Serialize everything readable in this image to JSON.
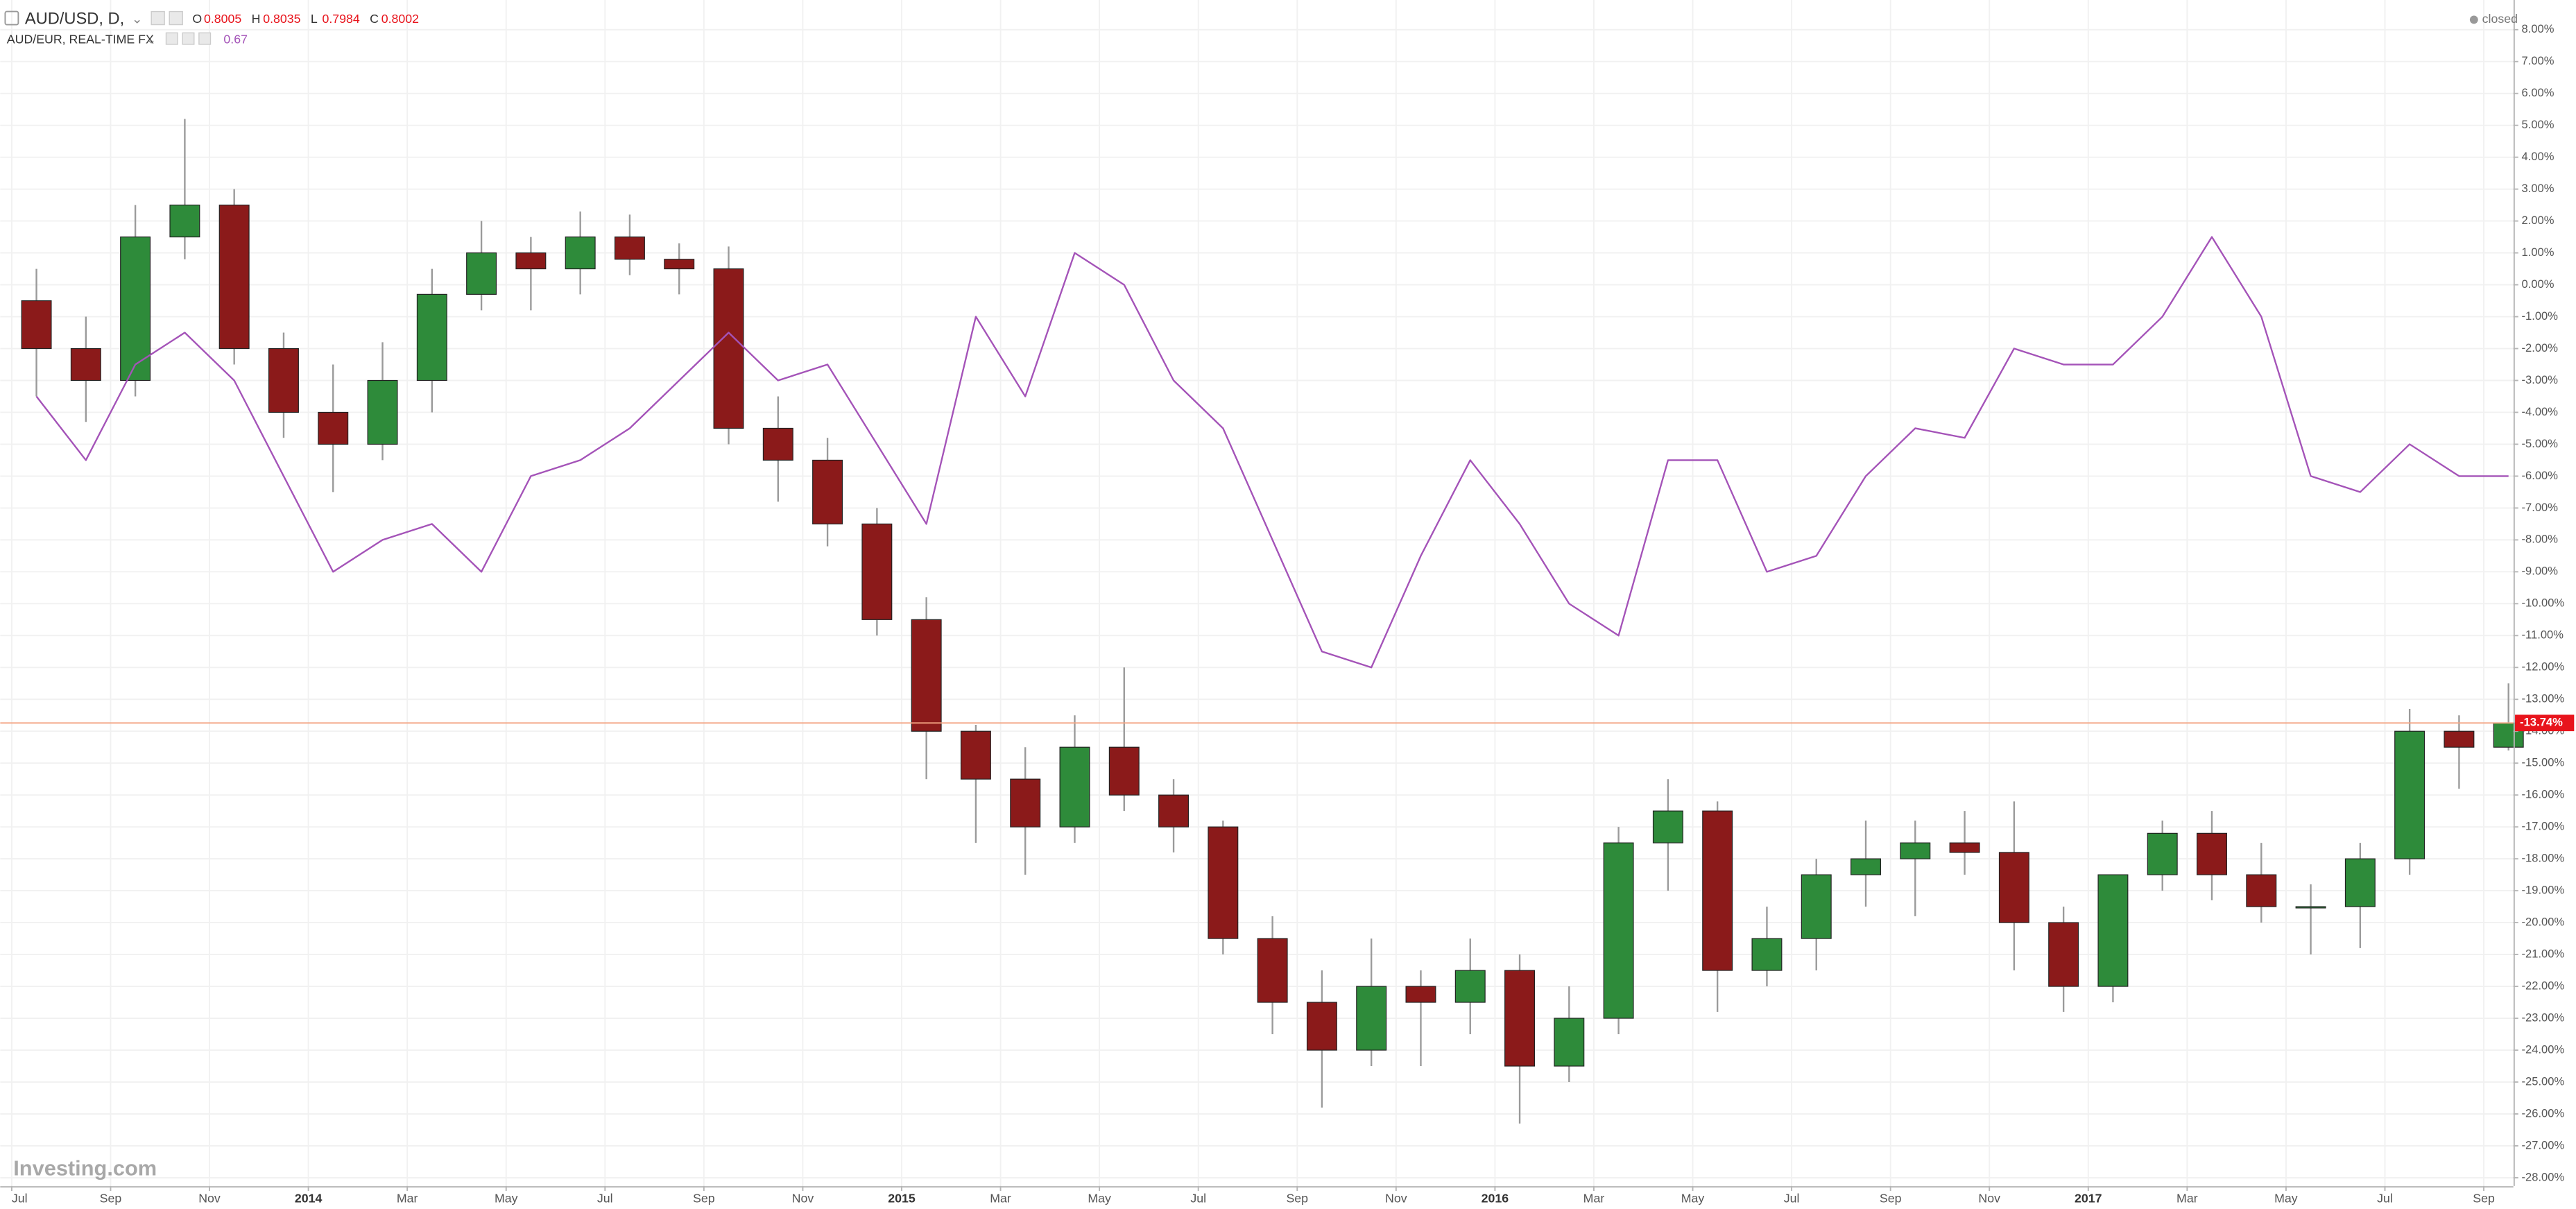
{
  "chart_data": {
    "type": "candlestick",
    "x": [
      "2013-07",
      "2013-08",
      "2013-09",
      "2013-10",
      "2013-11",
      "2013-12",
      "2014-01",
      "2014-02",
      "2014-03",
      "2014-04",
      "2014-05",
      "2014-06",
      "2014-07",
      "2014-08",
      "2014-09",
      "2014-10",
      "2014-11",
      "2014-12",
      "2015-01",
      "2015-02",
      "2015-03",
      "2015-04",
      "2015-05",
      "2015-06",
      "2015-07",
      "2015-08",
      "2015-09",
      "2015-10",
      "2015-11",
      "2015-12",
      "2016-01",
      "2016-02",
      "2016-03",
      "2016-04",
      "2016-05",
      "2016-06",
      "2016-07",
      "2016-08",
      "2016-09",
      "2016-10",
      "2016-11",
      "2016-12",
      "2017-01",
      "2017-02",
      "2017-03",
      "2017-04",
      "2017-05",
      "2017-06",
      "2017-07",
      "2017-08",
      "2017-09"
    ],
    "series": [
      {
        "name": "AUD/USD, D,",
        "type": "candlestick",
        "up_color": "#2e8b3a",
        "down_color": "#8b1a1a",
        "wick_color": "#9a9a9a",
        "open": [
          -0.5,
          -2.0,
          -3.0,
          1.5,
          2.5,
          -2.0,
          -4.0,
          -5.0,
          -3.0,
          -0.3,
          1.0,
          0.5,
          1.5,
          0.8,
          0.5,
          -4.5,
          -5.5,
          -7.5,
          -10.5,
          -14.0,
          -15.5,
          -17.0,
          -14.5,
          -16.0,
          -17.0,
          -20.5,
          -22.5,
          -24.0,
          -22.0,
          -22.5,
          -21.5,
          -24.5,
          -23.0,
          -17.5,
          -16.5,
          -21.5,
          -20.5,
          -18.5,
          -18.0,
          -17.5,
          -17.8,
          -20.0,
          -22.0,
          -18.5,
          -17.2,
          -18.5,
          -19.5,
          -19.5,
          -18.0,
          -14.0,
          -14.5
        ],
        "high": [
          0.5,
          -1.0,
          2.5,
          5.2,
          3.0,
          -1.5,
          -2.5,
          -1.8,
          0.5,
          2.0,
          1.5,
          2.3,
          2.2,
          1.3,
          1.2,
          -3.5,
          -4.8,
          -7.0,
          -9.8,
          -13.8,
          -14.5,
          -13.5,
          -12.0,
          -15.5,
          -16.8,
          -19.8,
          -21.5,
          -20.5,
          -21.5,
          -20.5,
          -21.0,
          -22.0,
          -17.0,
          -15.5,
          -16.2,
          -19.5,
          -18.0,
          -16.8,
          -16.8,
          -16.5,
          -16.2,
          -19.5,
          -18.5,
          -16.8,
          -16.5,
          -17.5,
          -18.8,
          -17.5,
          -13.3,
          -13.5,
          -12.5
        ],
        "low": [
          -3.5,
          -4.3,
          -3.5,
          0.8,
          -2.5,
          -4.8,
          -6.5,
          -5.5,
          -4.0,
          -0.8,
          -0.8,
          -0.3,
          0.3,
          -0.3,
          -5.0,
          -6.8,
          -8.2,
          -11.0,
          -15.5,
          -17.5,
          -18.5,
          -17.5,
          -16.5,
          -17.8,
          -21.0,
          -23.5,
          -25.8,
          -24.5,
          -24.5,
          -23.5,
          -26.3,
          -25.0,
          -23.5,
          -19.0,
          -22.8,
          -22.0,
          -21.5,
          -19.5,
          -19.8,
          -18.5,
          -21.5,
          -22.8,
          -22.5,
          -19.0,
          -19.3,
          -20.0,
          -21.0,
          -20.8,
          -18.5,
          -15.8,
          -14.6
        ],
        "close": [
          -2.0,
          -3.0,
          1.5,
          2.5,
          -2.0,
          -4.0,
          -5.0,
          -3.0,
          -0.3,
          1.0,
          0.5,
          1.5,
          0.8,
          0.5,
          -4.5,
          -5.5,
          -7.5,
          -10.5,
          -14.0,
          -15.5,
          -17.0,
          -14.5,
          -16.0,
          -17.0,
          -20.5,
          -22.5,
          -24.0,
          -22.0,
          -22.5,
          -21.5,
          -24.5,
          -23.0,
          -17.5,
          -16.5,
          -21.5,
          -20.5,
          -18.5,
          -18.0,
          -17.5,
          -17.8,
          -20.0,
          -22.0,
          -18.5,
          -17.2,
          -18.5,
          -19.5,
          -19.5,
          -18.0,
          -14.0,
          -14.5,
          -13.74
        ],
        "value_labels": [
          null,
          null,
          null,
          null,
          null,
          null,
          null,
          null,
          null,
          null,
          null,
          null,
          null,
          null,
          null,
          null,
          null,
          null,
          null,
          null,
          null,
          null,
          null,
          null,
          null,
          null,
          null,
          null,
          null,
          null,
          null,
          null,
          null,
          null,
          null,
          null,
          null,
          null,
          null,
          null,
          null,
          null,
          null,
          null,
          null,
          null,
          null,
          null,
          null,
          null,
          "-13.74%"
        ],
        "last_color": "#e8141c",
        "last_line_color": "#f3a583"
      },
      {
        "name": "AUD/EUR, REAL-TIME FX",
        "type": "line",
        "color": "#a453b8",
        "values": [
          -3.5,
          -5.5,
          -2.5,
          -1.5,
          -3.0,
          -6.0,
          -9.0,
          -8.0,
          -7.5,
          -9.0,
          -6.0,
          -5.5,
          -4.5,
          -3.0,
          -1.5,
          -3.0,
          -2.5,
          -5.0,
          -7.5,
          -1.0,
          -3.5,
          1.0,
          0.0,
          -3.0,
          -4.5,
          -8.0,
          -11.5,
          -12.0,
          -8.5,
          -5.5,
          -7.5,
          -10.0,
          -11.0,
          -5.5,
          -5.5,
          -9.0,
          -8.5,
          -6.0,
          -4.5,
          -4.8,
          -2.0,
          -2.5,
          -2.5,
          -1.0,
          1.5,
          -1.0,
          -6.0,
          -6.5,
          -5.0,
          -6.0,
          -6.0
        ]
      }
    ],
    "ohlc_labels": [
      "O",
      "H",
      "L",
      "C"
    ],
    "ohlc_values": [
      0.8005,
      0.8035,
      0.7984,
      0.8002
    ],
    "compare_value": 0.67,
    "status": "closed",
    "watermark": "Investing.com",
    "ylim": [
      -28.26,
      8.93
    ],
    "yticks": [
      {
        "value": 8,
        "label": "8.00%"
      },
      {
        "value": 7,
        "label": "7.00%"
      },
      {
        "value": 6,
        "label": "6.00%"
      },
      {
        "value": 5,
        "label": "5.00%"
      },
      {
        "value": 4,
        "label": "4.00%"
      },
      {
        "value": 3,
        "label": "3.00%"
      },
      {
        "value": 2,
        "label": "2.00%"
      },
      {
        "value": 1,
        "label": "1.00%"
      },
      {
        "value": 0,
        "label": "0.00%"
      },
      {
        "value": -1,
        "label": "-1.00%"
      },
      {
        "value": -2,
        "label": "-2.00%"
      },
      {
        "value": -3,
        "label": "-3.00%"
      },
      {
        "value": -4,
        "label": "-4.00%"
      },
      {
        "value": -5,
        "label": "-5.00%"
      },
      {
        "value": -6,
        "label": "-6.00%"
      },
      {
        "value": -7,
        "label": "-7.00%"
      },
      {
        "value": -8,
        "label": "-8.00%"
      },
      {
        "value": -9,
        "label": "-9.00%"
      },
      {
        "value": -10,
        "label": "-10.00%"
      },
      {
        "value": -11,
        "label": "-11.00%"
      },
      {
        "value": -12,
        "label": "-12.00%"
      },
      {
        "value": -13,
        "label": "-13.00%"
      },
      {
        "value": -14,
        "label": "-14.00%"
      },
      {
        "value": -15,
        "label": "-15.00%"
      },
      {
        "value": -16,
        "label": "-16.00%"
      },
      {
        "value": -17,
        "label": "-17.00%"
      },
      {
        "value": -18,
        "label": "-18.00%"
      },
      {
        "value": -19,
        "label": "-19.00%"
      },
      {
        "value": -20,
        "label": "-20.00%"
      },
      {
        "value": -21,
        "label": "-21.00%"
      },
      {
        "value": -22,
        "label": "-22.00%"
      },
      {
        "value": -23,
        "label": "-23.00%"
      },
      {
        "value": -24,
        "label": "-24.00%"
      },
      {
        "value": -25,
        "label": "-25.00%"
      },
      {
        "value": -26,
        "label": "-26.00%"
      },
      {
        "value": -27,
        "label": "-27.00%"
      },
      {
        "value": -28,
        "label": "-28.00%"
      }
    ],
    "xticks": [
      {
        "value": "2013-07",
        "label": "Jul"
      },
      {
        "value": "2013-09",
        "label": "Sep"
      },
      {
        "value": "2013-11",
        "label": "Nov"
      },
      {
        "value": "2014-01",
        "label": "2014"
      },
      {
        "value": "2014-03",
        "label": "Mar"
      },
      {
        "value": "2014-05",
        "label": "May"
      },
      {
        "value": "2014-07",
        "label": "Jul"
      },
      {
        "value": "2014-09",
        "label": "Sep"
      },
      {
        "value": "2014-11",
        "label": "Nov"
      },
      {
        "value": "2015-01",
        "label": "2015"
      },
      {
        "value": "2015-03",
        "label": "Mar"
      },
      {
        "value": "2015-05",
        "label": "May"
      },
      {
        "value": "2015-07",
        "label": "Jul"
      },
      {
        "value": "2015-09",
        "label": "Sep"
      },
      {
        "value": "2015-11",
        "label": "Nov"
      },
      {
        "value": "2016-01",
        "label": "2016"
      },
      {
        "value": "2016-03",
        "label": "Mar"
      },
      {
        "value": "2016-05",
        "label": "May"
      },
      {
        "value": "2016-07",
        "label": "Jul"
      },
      {
        "value": "2016-09",
        "label": "Sep"
      },
      {
        "value": "2016-11",
        "label": "Nov"
      },
      {
        "value": "2017-01",
        "label": "2017"
      },
      {
        "value": "2017-03",
        "label": "Mar"
      },
      {
        "value": "2017-05",
        "label": "May"
      },
      {
        "value": "2017-07",
        "label": "Jul"
      },
      {
        "value": "2017-09",
        "label": "Sep"
      }
    ],
    "grid": true
  }
}
